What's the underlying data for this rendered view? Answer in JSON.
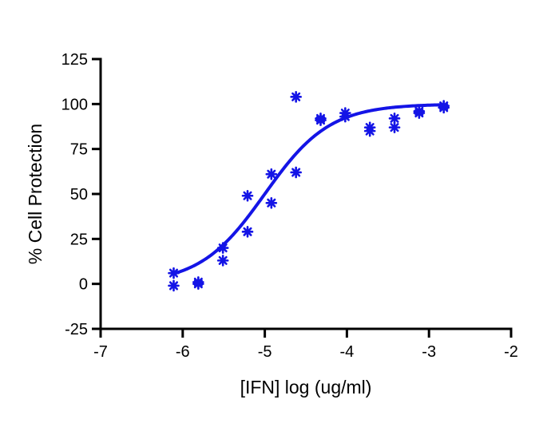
{
  "chart_data": {
    "type": "scatter",
    "title": "",
    "xlabel": "[IFN] log (ug/ml)",
    "ylabel": "% Cell Protection",
    "xlim": [
      -7,
      -2
    ],
    "ylim": [
      -25,
      125
    ],
    "xticks": [
      -7,
      -6,
      -5,
      -4,
      -3,
      -2
    ],
    "yticks": [
      -25,
      0,
      25,
      50,
      75,
      100,
      125
    ],
    "grid": false,
    "legend": "none",
    "color": "#1414e6",
    "points": [
      {
        "x": -6.11,
        "y": 6
      },
      {
        "x": -6.11,
        "y": -1
      },
      {
        "x": -5.81,
        "y": 0
      },
      {
        "x": -5.81,
        "y": 1
      },
      {
        "x": -5.51,
        "y": 20
      },
      {
        "x": -5.51,
        "y": 13
      },
      {
        "x": -5.21,
        "y": 49
      },
      {
        "x": -5.21,
        "y": 29
      },
      {
        "x": -4.92,
        "y": 61
      },
      {
        "x": -4.92,
        "y": 45
      },
      {
        "x": -4.62,
        "y": 104
      },
      {
        "x": -4.62,
        "y": 62
      },
      {
        "x": -4.32,
        "y": 92
      },
      {
        "x": -4.32,
        "y": 91
      },
      {
        "x": -4.02,
        "y": 95
      },
      {
        "x": -4.02,
        "y": 93
      },
      {
        "x": -3.72,
        "y": 87
      },
      {
        "x": -3.72,
        "y": 85
      },
      {
        "x": -3.42,
        "y": 92
      },
      {
        "x": -3.42,
        "y": 87
      },
      {
        "x": -3.12,
        "y": 96
      },
      {
        "x": -3.12,
        "y": 95
      },
      {
        "x": -2.82,
        "y": 99
      },
      {
        "x": -2.82,
        "y": 98
      }
    ],
    "fit": {
      "model": "four-parameter logistic",
      "bottom": 0,
      "top": 100,
      "logEC50": -5.0,
      "hillslope": 1.1,
      "x_range": [
        -6.11,
        -2.82
      ]
    }
  }
}
